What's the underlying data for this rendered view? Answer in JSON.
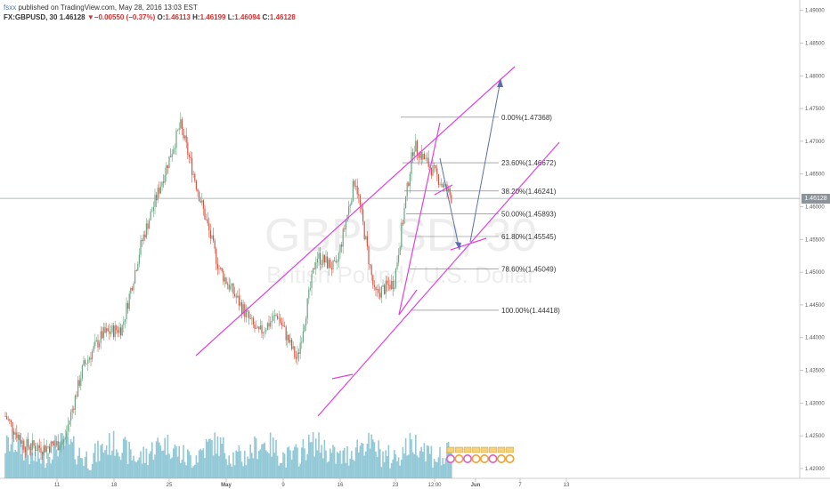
{
  "header": {
    "user": "fsxx",
    "published": "published on TradingView.com, May 28, 2016 13:03 EST",
    "symbol": "FX:GBPUSD, 30",
    "last": "1.46128",
    "change": "▼−0.00550 (−0.37%)",
    "o_label": "O:",
    "o_value": "1.46113",
    "h_label": "H:",
    "h_value": "1.46199",
    "l_label": "L:",
    "l_value": "1.46094",
    "c_label": "C:",
    "c_value": "1.46128"
  },
  "watermark": {
    "symbol": "GBPUSD, 30",
    "name": "British Pound / U.S. Dollar"
  },
  "current_price_badge": "1.46128",
  "colors": {
    "channel": "#e040e0",
    "fib": "#777777",
    "arrow": "#5b6fb0",
    "up_candle": "#6ba583",
    "down_candle": "#d75442",
    "volume": "#6fb6c8",
    "price_line": "#9aa8a8"
  },
  "chart_data": {
    "type": "candlestick",
    "symbol": "FX:GBPUSD",
    "timeframe": "30",
    "y_range": [
      1.4185,
      1.4905
    ],
    "y_ticks": [
      "1.49000",
      "1.48500",
      "1.48000",
      "1.47500",
      "1.47000",
      "1.46500",
      "1.46000",
      "1.45500",
      "1.45000",
      "1.44500",
      "1.44000",
      "1.43500",
      "1.43000",
      "1.42500",
      "1.42000"
    ],
    "x_ticks": [
      "11",
      "18",
      "25",
      "May",
      "9",
      "16",
      "23",
      "12:00",
      "Jun",
      "7",
      "13"
    ],
    "last_price": 1.46128,
    "price_path": [
      {
        "t": "Apr 6",
        "p": 1.428
      },
      {
        "t": "Apr 11",
        "p": 1.4235
      },
      {
        "t": "Apr 15",
        "p": 1.4232
      },
      {
        "t": "Apr 18",
        "p": 1.424
      },
      {
        "t": "Apr 20",
        "p": 1.4355
      },
      {
        "t": "Apr 22",
        "p": 1.4405
      },
      {
        "t": "Apr 25",
        "p": 1.4415
      },
      {
        "t": "Apr 27",
        "p": 1.4545
      },
      {
        "t": "Apr 29",
        "p": 1.4635
      },
      {
        "t": "May 2",
        "p": 1.4725
      },
      {
        "t": "May 3",
        "p": 1.4615
      },
      {
        "t": "May 5",
        "p": 1.4505
      },
      {
        "t": "May 9",
        "p": 1.4455
      },
      {
        "t": "May 10",
        "p": 1.4405
      },
      {
        "t": "May 12",
        "p": 1.4435
      },
      {
        "t": "May 16",
        "p": 1.4365
      },
      {
        "t": "May 18",
        "p": 1.4525
      },
      {
        "t": "May 20",
        "p": 1.4505
      },
      {
        "t": "May 23",
        "p": 1.4645
      },
      {
        "t": "May 24",
        "p": 1.4465
      },
      {
        "t": "May 25",
        "p": 1.4485
      },
      {
        "t": "May 26",
        "p": 1.4695
      },
      {
        "t": "May 27",
        "p": 1.4655
      },
      {
        "t": "May 28",
        "p": 1.46128
      }
    ],
    "fibonacci": [
      {
        "label": "0.00%(1.47368)",
        "value": 1.47368
      },
      {
        "label": "23.60%(1.46672)",
        "value": 1.46672
      },
      {
        "label": "38.20%(1.46241)",
        "value": 1.46241
      },
      {
        "label": "50.00%(1.45893)",
        "value": 1.45893
      },
      {
        "label": "61.80%(1.45545)",
        "value": 1.45545
      },
      {
        "label": "78.60%(1.45049)",
        "value": 1.45049
      },
      {
        "label": "100.00%(1.44418)",
        "value": 1.44418
      }
    ]
  }
}
